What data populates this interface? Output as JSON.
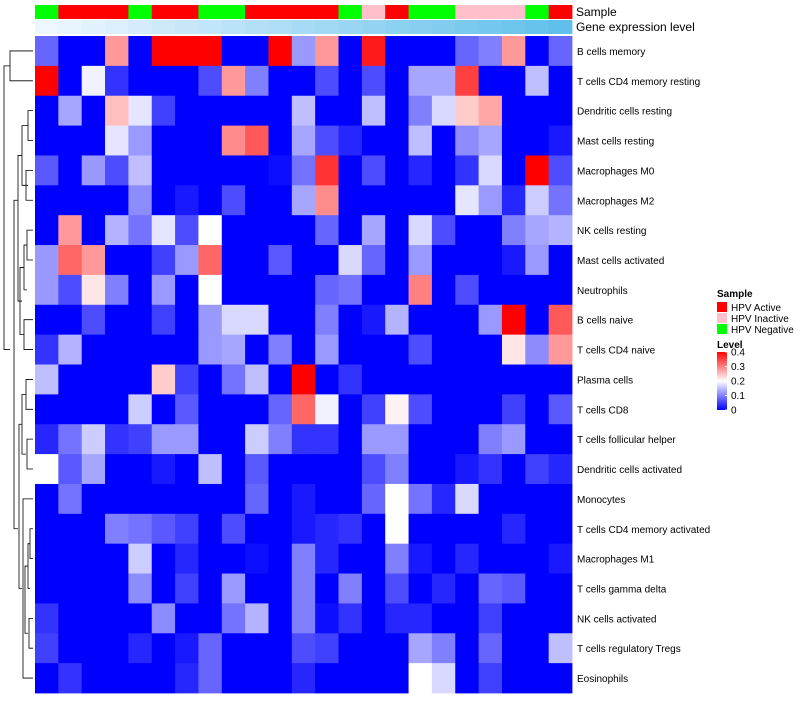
{
  "chart_data": {
    "type": "heatmap",
    "title": "",
    "annotation_labels": [
      "Sample",
      "Gene expression level"
    ],
    "sample_annotation": [
      "neg",
      "act",
      "act",
      "act",
      "neg",
      "act",
      "act",
      "neg",
      "neg",
      "act",
      "act",
      "act",
      "act",
      "neg",
      "ina",
      "act",
      "neg",
      "neg",
      "ina",
      "ina",
      "ina",
      "neg",
      "act"
    ],
    "gene_expression_annotation": [
      0.0,
      0.04,
      0.08,
      0.12,
      0.16,
      0.2,
      0.24,
      0.28,
      0.32,
      0.36,
      0.4,
      0.44,
      0.48,
      0.52,
      0.56,
      0.6,
      0.64,
      0.68,
      0.72,
      0.76,
      0.8,
      0.84,
      0.88
    ],
    "rows": [
      "B cells memory",
      "T cells CD4 memory resting",
      "Dendritic cells resting",
      "Mast cells resting",
      "Macrophages M0",
      "Macrophages M2",
      "NK cells resting",
      "Mast cells activated",
      "Neutrophils",
      "B cells naive",
      "T cells CD4 naive",
      "Plasma cells",
      "T cells CD8",
      "T cells follicular helper",
      "Dendritic cells activated",
      "Monocytes",
      "T cells CD4 memory activated",
      "Macrophages M1",
      "T cells gamma delta",
      "NK cells activated",
      "T cells regulatory  Tregs",
      "Eosinophils"
    ],
    "values": [
      [
        0.08,
        0.0,
        0.0,
        0.28,
        0.0,
        0.4,
        0.4,
        0.4,
        0.0,
        0.0,
        0.4,
        0.12,
        0.28,
        0.0,
        0.38,
        0.0,
        0.0,
        0.0,
        0.08,
        0.1,
        0.28,
        0.0,
        0.08
      ],
      [
        0.4,
        0.0,
        0.19,
        0.04,
        0.0,
        0.0,
        0.0,
        0.06,
        0.28,
        0.1,
        0.0,
        0.0,
        0.06,
        0.0,
        0.06,
        0.0,
        0.13,
        0.13,
        0.35,
        0.0,
        0.0,
        0.15,
        0.0
      ],
      [
        0.0,
        0.13,
        0.0,
        0.25,
        0.18,
        0.05,
        0.0,
        0.0,
        0.0,
        0.0,
        0.0,
        0.15,
        0.0,
        0.0,
        0.15,
        0.0,
        0.1,
        0.17,
        0.24,
        0.27,
        0.0,
        0.0,
        0.0
      ],
      [
        0.0,
        0.0,
        0.0,
        0.18,
        0.12,
        0.0,
        0.0,
        0.0,
        0.29,
        0.33,
        0.0,
        0.13,
        0.06,
        0.03,
        0.0,
        0.0,
        0.15,
        0.0,
        0.11,
        0.13,
        0.0,
        0.0,
        0.02
      ],
      [
        0.07,
        0.0,
        0.12,
        0.06,
        0.15,
        0.0,
        0.0,
        0.0,
        0.0,
        0.0,
        0.01,
        0.09,
        0.36,
        0.0,
        0.06,
        0.0,
        0.03,
        0.0,
        0.04,
        0.17,
        0.0,
        0.4,
        0.06
      ],
      [
        0.0,
        0.0,
        0.0,
        0.0,
        0.11,
        0.0,
        0.02,
        0.0,
        0.06,
        0.0,
        0.0,
        0.13,
        0.29,
        0.0,
        0.0,
        0.0,
        0.0,
        0.0,
        0.18,
        0.12,
        0.03,
        0.16,
        0.09
      ],
      [
        0.0,
        0.28,
        0.0,
        0.14,
        0.09,
        0.18,
        0.06,
        0.2,
        0.0,
        0.0,
        0.0,
        0.0,
        0.08,
        0.0,
        0.13,
        0.0,
        0.17,
        0.06,
        0.0,
        0.0,
        0.1,
        0.13,
        0.14
      ],
      [
        0.12,
        0.32,
        0.28,
        0.0,
        0.0,
        0.05,
        0.12,
        0.32,
        0.0,
        0.0,
        0.07,
        0.0,
        0.0,
        0.17,
        0.08,
        0.0,
        0.12,
        0.0,
        0.0,
        0.0,
        0.02,
        0.12,
        0.0
      ],
      [
        0.12,
        0.06,
        0.22,
        0.1,
        0.0,
        0.12,
        0.0,
        0.2,
        0.0,
        0.0,
        0.0,
        0.0,
        0.08,
        0.09,
        0.0,
        0.0,
        0.3,
        0.0,
        0.06,
        0.0,
        0.0,
        0.0,
        0.0
      ],
      [
        0.0,
        0.0,
        0.06,
        0.0,
        0.0,
        0.05,
        0.0,
        0.12,
        0.17,
        0.17,
        0.0,
        0.0,
        0.1,
        0.0,
        0.02,
        0.14,
        0.0,
        0.0,
        0.0,
        0.12,
        0.42,
        0.0,
        0.33
      ],
      [
        0.04,
        0.14,
        0.0,
        0.0,
        0.0,
        0.0,
        0.0,
        0.12,
        0.13,
        0.0,
        0.1,
        0.0,
        0.12,
        0.0,
        0.0,
        0.0,
        0.06,
        0.0,
        0.0,
        0.0,
        0.22,
        0.11,
        0.28
      ],
      [
        0.15,
        0.0,
        0.0,
        0.0,
        0.0,
        0.24,
        0.05,
        0.0,
        0.09,
        0.15,
        0.0,
        0.4,
        0.0,
        0.04,
        0.0,
        0.0,
        0.0,
        0.0,
        0.0,
        0.0,
        0.0,
        0.0,
        0.0
      ],
      [
        0.0,
        0.0,
        0.0,
        0.0,
        0.16,
        0.0,
        0.07,
        0.0,
        0.0,
        0.0,
        0.08,
        0.32,
        0.19,
        0.0,
        0.05,
        0.21,
        0.06,
        0.0,
        0.0,
        0.0,
        0.05,
        0.0,
        0.07
      ],
      [
        0.03,
        0.09,
        0.16,
        0.04,
        0.05,
        0.12,
        0.12,
        0.0,
        0.0,
        0.16,
        0.1,
        0.04,
        0.04,
        0.0,
        0.12,
        0.12,
        0.0,
        0.0,
        0.0,
        0.1,
        0.12,
        0.0,
        0.0
      ],
      [
        0.2,
        0.07,
        0.13,
        0.0,
        0.0,
        0.02,
        0.0,
        0.15,
        0.0,
        0.07,
        0.0,
        0.0,
        0.0,
        0.0,
        0.06,
        0.1,
        0.0,
        0.0,
        0.02,
        0.04,
        0.0,
        0.05,
        0.03
      ],
      [
        0.0,
        0.09,
        0.0,
        0.0,
        0.0,
        0.0,
        0.0,
        0.0,
        0.0,
        0.08,
        0.0,
        0.02,
        0.0,
        0.0,
        0.08,
        0.2,
        0.09,
        0.03,
        0.17,
        0.0,
        0.0,
        0.0,
        0.0
      ],
      [
        0.0,
        0.0,
        0.0,
        0.1,
        0.09,
        0.07,
        0.05,
        0.0,
        0.06,
        0.0,
        0.0,
        0.02,
        0.03,
        0.04,
        0.0,
        0.2,
        0.0,
        0.0,
        0.0,
        0.0,
        0.03,
        0.0,
        0.0
      ],
      [
        0.0,
        0.0,
        0.0,
        0.0,
        0.16,
        0.0,
        0.03,
        0.0,
        0.0,
        0.01,
        0.0,
        0.1,
        0.03,
        0.0,
        0.0,
        0.1,
        0.02,
        0.0,
        0.03,
        0.0,
        0.0,
        0.0,
        0.02
      ],
      [
        0.0,
        0.0,
        0.0,
        0.0,
        0.11,
        0.0,
        0.05,
        0.0,
        0.12,
        0.0,
        0.0,
        0.1,
        0.0,
        0.1,
        0.0,
        0.06,
        0.0,
        0.03,
        0.0,
        0.08,
        0.07,
        0.0,
        0.0
      ],
      [
        0.04,
        0.0,
        0.0,
        0.0,
        0.0,
        0.11,
        0.0,
        0.0,
        0.09,
        0.14,
        0.0,
        0.1,
        0.01,
        0.04,
        0.0,
        0.03,
        0.03,
        0.0,
        0.0,
        0.05,
        0.0,
        0.0,
        0.0
      ],
      [
        0.05,
        0.0,
        0.0,
        0.0,
        0.03,
        0.0,
        0.02,
        0.08,
        0.0,
        0.0,
        0.0,
        0.06,
        0.05,
        0.0,
        0.0,
        0.0,
        0.13,
        0.1,
        0.0,
        0.08,
        0.0,
        0.0,
        0.15
      ],
      [
        0.0,
        0.04,
        0.0,
        0.0,
        0.0,
        0.0,
        0.03,
        0.08,
        0.0,
        0.0,
        0.0,
        0.03,
        0.0,
        0.0,
        0.0,
        0.0,
        0.2,
        0.17,
        0.0,
        0.05,
        0.0,
        0.0,
        0.0
      ]
    ],
    "legend_sample": {
      "title": "Sample",
      "items": [
        {
          "key": "act",
          "label": "HPV Active",
          "color": "#ff0000"
        },
        {
          "key": "ina",
          "label": "HPV Inactive",
          "color": "#ffc0cb"
        },
        {
          "key": "neg",
          "label": "HPV Negative",
          "color": "#00ff00"
        }
      ]
    },
    "legend_level": {
      "title": "Level",
      "ticks": [
        "0.4",
        "0.3",
        "0.2",
        "0.1",
        "0"
      ],
      "tick_values": [
        0.4,
        0.3,
        0.2,
        0.1,
        0.0
      ],
      "range": [
        0,
        0.4
      ]
    },
    "color_scale": {
      "low": "#0000ff",
      "mid": "#ffffff",
      "high": "#ff0000",
      "mid_value": 0.2
    },
    "annotation_colors": {
      "gene_low": "#eef6ff",
      "gene_high": "#4db8e8"
    }
  }
}
